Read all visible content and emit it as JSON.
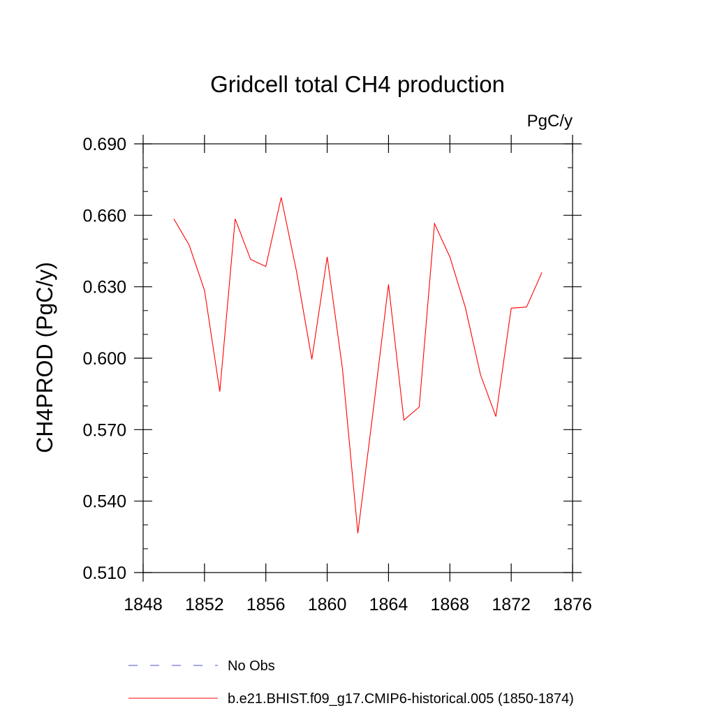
{
  "chart_data": {
    "type": "line",
    "title": "Gridcell total CH4 production",
    "units": "PgC/y",
    "ylabel": "CH4PROD  (PgC/y)",
    "xlabel": "",
    "xlim": [
      1848,
      1876
    ],
    "ylim": [
      0.51,
      0.69
    ],
    "x_ticks": [
      1848,
      1852,
      1856,
      1860,
      1864,
      1868,
      1872,
      1876
    ],
    "x_tick_labels": [
      "1848",
      "1852",
      "1856",
      "1860",
      "1864",
      "1868",
      "1872",
      "1876"
    ],
    "y_ticks": [
      0.51,
      0.54,
      0.57,
      0.6,
      0.63,
      0.66,
      0.69
    ],
    "y_tick_labels": [
      "0.510",
      "0.540",
      "0.570",
      "0.600",
      "0.630",
      "0.660",
      "0.690"
    ],
    "grid": false,
    "legend_position": "bottom",
    "series": [
      {
        "name": "b.e21.BHIST.f09_g17.CMIP6-historical.005 (1850-1874)",
        "color": "#ff0000",
        "style": "solid",
        "x": [
          1850,
          1851,
          1852,
          1853,
          1854,
          1855,
          1856,
          1857,
          1858,
          1859,
          1860,
          1861,
          1862,
          1863,
          1864,
          1865,
          1866,
          1867,
          1868,
          1869,
          1870,
          1871,
          1872,
          1873,
          1874
        ],
        "values": [
          0.6585,
          0.6475,
          0.6285,
          0.586,
          0.6585,
          0.6415,
          0.6385,
          0.6675,
          0.6365,
          0.5995,
          0.6425,
          0.5955,
          0.5265,
          0.578,
          0.631,
          0.574,
          0.5795,
          0.6565,
          0.6425,
          0.6215,
          0.593,
          0.5755,
          0.621,
          0.6215,
          0.636
        ]
      }
    ],
    "legend": [
      {
        "label": "No Obs",
        "color": "#4d4dcc",
        "style": "dashed"
      },
      {
        "label": "b.e21.BHIST.f09_g17.CMIP6-historical.005 (1850-1874)",
        "color": "#ff0000",
        "style": "solid"
      }
    ]
  }
}
